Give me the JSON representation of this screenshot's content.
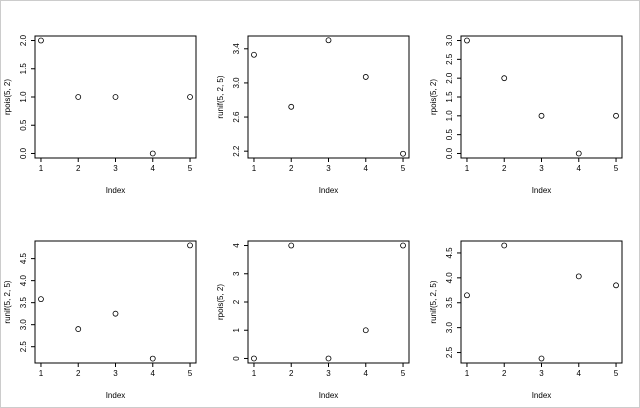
{
  "chart_data": [
    {
      "type": "scatter",
      "x": [
        1,
        2,
        3,
        4,
        5
      ],
      "values": [
        2,
        1,
        1,
        0,
        1
      ],
      "xlabel": "Index",
      "ylabel": "rpois(5, 2)",
      "xlim": [
        0.84,
        5.16
      ],
      "xticks": [
        1,
        2,
        3,
        4,
        5
      ],
      "ylim": [
        -0.08,
        2.08
      ],
      "yticks": [
        {
          "value": 0,
          "label": "0.0"
        },
        {
          "value": 0.5,
          "label": "0.5"
        },
        {
          "value": 1,
          "label": "1.0"
        },
        {
          "value": 1.5,
          "label": "1.5"
        },
        {
          "value": 2,
          "label": "2.0"
        }
      ]
    },
    {
      "type": "scatter",
      "x": [
        1,
        2,
        3,
        4,
        5
      ],
      "values": [
        3.33,
        2.72,
        3.5,
        3.07,
        2.17
      ],
      "xlabel": "Index",
      "ylabel": "runif(5, 2, 5)",
      "xlim": [
        0.84,
        5.16
      ],
      "xticks": [
        1,
        2,
        3,
        4,
        5
      ],
      "ylim": [
        2.12,
        3.55
      ],
      "yticks": [
        2.2,
        2.6,
        {
          "value": 3,
          "label": "3.0"
        },
        3.4
      ]
    },
    {
      "type": "scatter",
      "x": [
        1,
        2,
        3,
        4,
        5
      ],
      "values": [
        3,
        2,
        1,
        0,
        1
      ],
      "xlabel": "Index",
      "ylabel": "rpois(5, 2)",
      "xlim": [
        0.84,
        5.16
      ],
      "xticks": [
        1,
        2,
        3,
        4,
        5
      ],
      "ylim": [
        -0.12,
        3.12
      ],
      "yticks": [
        {
          "value": 0,
          "label": "0.0"
        },
        {
          "value": 0.5,
          "label": "0.5"
        },
        {
          "value": 1,
          "label": "1.0"
        },
        {
          "value": 1.5,
          "label": "1.5"
        },
        {
          "value": 2,
          "label": "2.0"
        },
        {
          "value": 2.5,
          "label": "2.5"
        },
        {
          "value": 3,
          "label": "3.0"
        }
      ]
    },
    {
      "type": "scatter",
      "x": [
        1,
        2,
        3,
        4,
        5
      ],
      "values": [
        3.58,
        2.9,
        3.25,
        2.23,
        4.8
      ],
      "xlabel": "Index",
      "ylabel": "runif(5, 2, 5)",
      "xlim": [
        0.84,
        5.16
      ],
      "xticks": [
        1,
        2,
        3,
        4,
        5
      ],
      "ylim": [
        2.13,
        4.9
      ],
      "yticks": [
        2.5,
        {
          "value": 3,
          "label": "3.0"
        },
        3.5,
        {
          "value": 4,
          "label": "4.0"
        },
        4.5
      ]
    },
    {
      "type": "scatter",
      "x": [
        1,
        2,
        3,
        4,
        5
      ],
      "values": [
        0,
        4,
        0,
        1,
        4
      ],
      "xlabel": "Index",
      "ylabel": "rpois(5, 2)",
      "xlim": [
        0.84,
        5.16
      ],
      "xticks": [
        1,
        2,
        3,
        4,
        5
      ],
      "ylim": [
        -0.16,
        4.16
      ],
      "yticks": [
        0,
        1,
        2,
        3,
        4
      ]
    },
    {
      "type": "scatter",
      "x": [
        1,
        2,
        3,
        4,
        5
      ],
      "values": [
        3.65,
        4.65,
        2.38,
        4.03,
        3.85
      ],
      "xlabel": "Index",
      "ylabel": "runif(5, 2, 5)",
      "xlim": [
        0.84,
        5.16
      ],
      "xticks": [
        1,
        2,
        3,
        4,
        5
      ],
      "ylim": [
        2.29,
        4.74
      ],
      "yticks": [
        2.5,
        {
          "value": 3,
          "label": "3.0"
        },
        3.5,
        {
          "value": 4,
          "label": "4.0"
        },
        4.5
      ]
    }
  ]
}
